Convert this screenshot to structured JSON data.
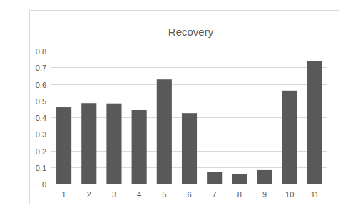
{
  "chart_data": {
    "type": "bar",
    "title": "Recovery",
    "categories": [
      "1",
      "2",
      "3",
      "4",
      "5",
      "6",
      "7",
      "8",
      "9",
      "10",
      "11"
    ],
    "values": [
      0.46,
      0.485,
      0.483,
      0.443,
      0.627,
      0.425,
      0.07,
      0.06,
      0.082,
      0.56,
      0.737
    ],
    "color": "#595959",
    "ylim": [
      0,
      0.8
    ],
    "yticks": [
      0,
      0.1,
      0.2,
      0.3,
      0.4,
      0.5,
      0.6,
      0.7,
      0.8
    ],
    "grid": true
  }
}
